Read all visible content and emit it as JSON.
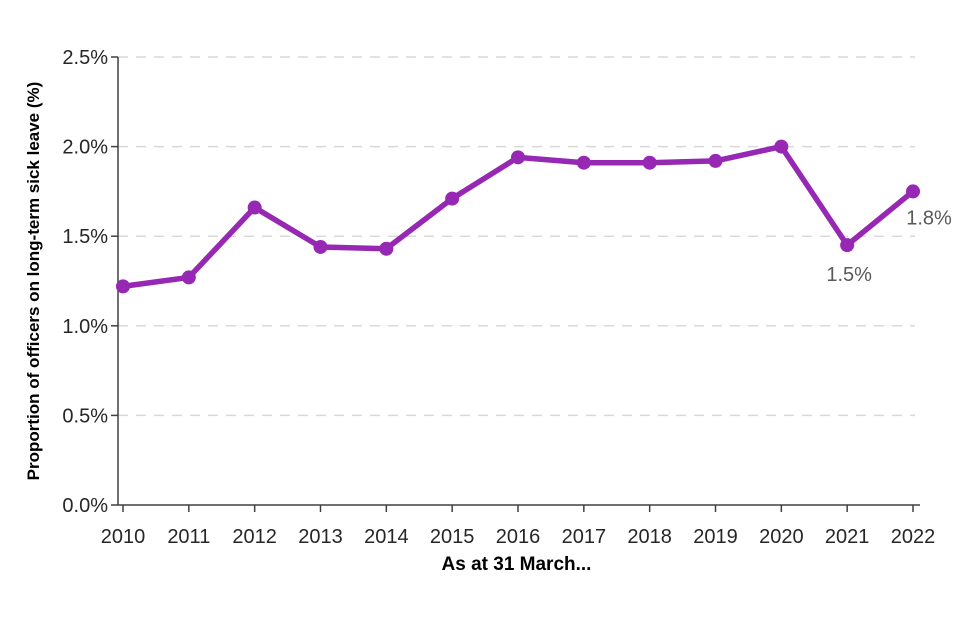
{
  "chart_data": {
    "type": "line",
    "title": "",
    "xlabel": "As at 31 March...",
    "ylabel": "Proportion of officers on long-term sick leave (%)",
    "categories": [
      "2010",
      "2011",
      "2012",
      "2013",
      "2014",
      "2015",
      "2016",
      "2017",
      "2018",
      "2019",
      "2020",
      "2021",
      "2022"
    ],
    "series": [
      {
        "name": "Proportion of officers on long-term sick leave",
        "values": [
          1.22,
          1.27,
          1.66,
          1.44,
          1.43,
          1.71,
          1.94,
          1.91,
          1.91,
          1.92,
          2.0,
          1.45,
          1.75
        ]
      }
    ],
    "point_labels": [
      {
        "category": "2021",
        "text": "1.5%"
      },
      {
        "category": "2022",
        "text": "1.8%"
      }
    ],
    "ylim": [
      0,
      2.5
    ],
    "yticks": [
      {
        "value": 0,
        "label": "0.0%"
      },
      {
        "value": 0.5,
        "label": "0.5%"
      },
      {
        "value": 1,
        "label": "1.0%"
      },
      {
        "value": 1.5,
        "label": "1.5%"
      },
      {
        "value": 2,
        "label": "2.0%"
      },
      {
        "value": 2.5,
        "label": "2.5%"
      }
    ],
    "grid": "horizontal-dashed",
    "legend": "none",
    "colors": {
      "line": "#9628B4",
      "grid": "#D9D9D9",
      "axis": "#404040",
      "tick_label": "#262626",
      "point_label": "#595959",
      "background": "#FFFFFF"
    }
  }
}
